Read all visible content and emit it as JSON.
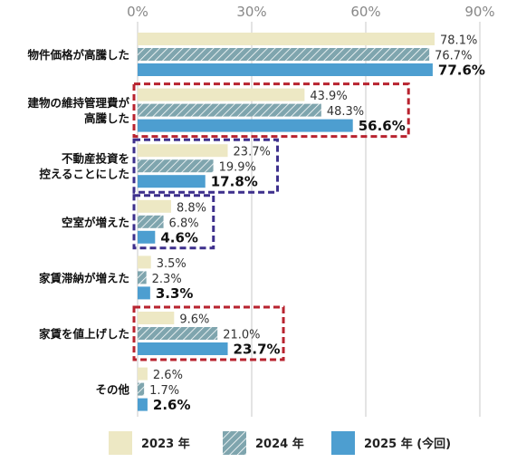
{
  "chart_data": {
    "type": "bar",
    "orientation": "horizontal",
    "categories": [
      [
        "物件価格が高騰した"
      ],
      [
        "建物の維持管理費が",
        "高騰した"
      ],
      [
        "不動産投資を",
        "控えることにした"
      ],
      [
        "空室が増えた"
      ],
      [
        "家賃滞納が増えた"
      ],
      [
        "家賃を値上げした"
      ],
      [
        "その他"
      ]
    ],
    "series": [
      {
        "name": "2023 年",
        "values": [
          78.1,
          43.9,
          23.7,
          8.8,
          3.5,
          9.6,
          2.6
        ],
        "labels": [
          "78.1%",
          "43.9%",
          "23.7%",
          "8.8%",
          "3.5%",
          "9.6%",
          "2.6%"
        ],
        "color": "#ede8c4"
      },
      {
        "name": "2024 年",
        "values": [
          76.7,
          48.3,
          19.9,
          6.8,
          2.3,
          21.0,
          1.7
        ],
        "labels": [
          "76.7%",
          "48.3%",
          "19.9%",
          "6.8%",
          "2.3%",
          "21.0%",
          "1.7%"
        ],
        "color": "#7fa5ae"
      },
      {
        "name": "2025 年 (今回)",
        "values": [
          77.6,
          56.6,
          17.8,
          4.6,
          3.3,
          23.7,
          2.6
        ],
        "labels": [
          "77.6%",
          "56.6%",
          "17.8%",
          "4.6%",
          "3.3%",
          "23.7%",
          "2.6%"
        ],
        "color": "#4d9ed0"
      }
    ],
    "xlim": [
      0,
      90
    ],
    "xticks": [
      "0%",
      "30%",
      "60%",
      "90%"
    ],
    "grid": true,
    "legend": "bottom",
    "highlight_boxes": [
      {
        "category_index": 1,
        "color": "#b8232f"
      },
      {
        "category_index": 2,
        "color": "#3d2f8c"
      },
      {
        "category_index": 3,
        "color": "#3d2f8c"
      },
      {
        "category_index": 5,
        "color": "#b8232f"
      }
    ]
  }
}
